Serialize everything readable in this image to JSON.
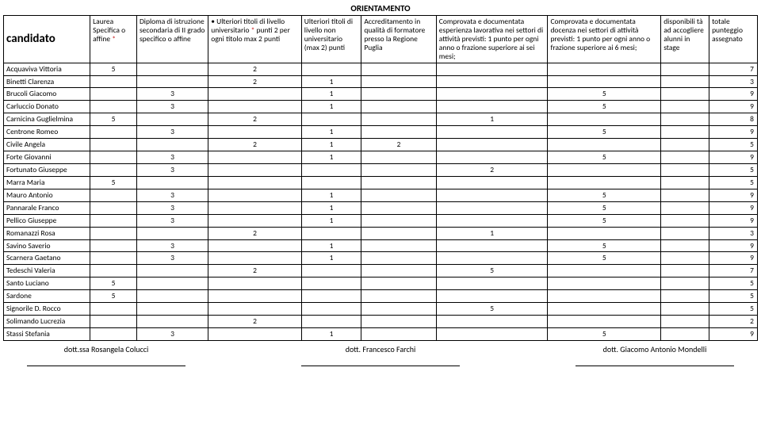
{
  "title": "ORIENTAMENTO",
  "headers": {
    "candidato": "candidato",
    "c1a": "Laurea Specifica o affine",
    "c1b": "*",
    "c2": "Diploma di istruzione secondaria di II grado specifico o affine",
    "c3a": "Ulteriori titoli di livello universitario ",
    "c3b": "*",
    "c3c": " punti 2 per ogni titolo  max 2 punti",
    "c4": "Ulteriori titoli di livello non universitario (max 2) punti",
    "c5": "Accreditamento in qualità di formatore presso la Regione Puglia",
    "c6": "Comprovata e documentata esperienza lavorativa nei settori di attività previsti: 1 punto per ogni anno o frazione superiore ai sei mesi;",
    "c7": "Comprovata e documentata docenza nei settori di attività previsti: 1 punto per ogni anno o frazione superiore ai 6 mesi;",
    "c8": "disponibili tà ad accogliere alunni in stage",
    "c9": "totale punteggio assegnato"
  },
  "rows": [
    {
      "n": "Acquaviva Vittoria",
      "v": [
        "5",
        "",
        "2",
        "",
        "",
        "",
        "",
        "",
        "7"
      ]
    },
    {
      "n": "Binetti Clarenza",
      "v": [
        "",
        "",
        "2",
        "1",
        "",
        "",
        "",
        "",
        "3"
      ]
    },
    {
      "n": "Brucoli Giacomo",
      "v": [
        "",
        "3",
        "",
        "1",
        "",
        "",
        "5",
        "",
        "9"
      ]
    },
    {
      "n": "Carluccio Donato",
      "v": [
        "",
        "3",
        "",
        "1",
        "",
        "",
        "5",
        "",
        "9"
      ]
    },
    {
      "n": "Carnicina Guglielmina",
      "v": [
        "5",
        "",
        "2",
        "",
        "",
        "1",
        "",
        "",
        "8"
      ]
    },
    {
      "n": "Centrone Romeo",
      "v": [
        "",
        "3",
        "",
        "1",
        "",
        "",
        "5",
        "",
        "9"
      ]
    },
    {
      "n": "Civile Angela",
      "v": [
        "",
        "",
        "2",
        "1",
        "2",
        "",
        "",
        "",
        "5"
      ]
    },
    {
      "n": "Forte Giovanni",
      "v": [
        "",
        "3",
        "",
        "1",
        "",
        "",
        "5",
        "",
        "9"
      ]
    },
    {
      "n": "Fortunato Giuseppe",
      "v": [
        "",
        "3",
        "",
        "",
        "",
        "2",
        "",
        "",
        "5"
      ]
    },
    {
      "n": "Marra Maria",
      "v": [
        "5",
        "",
        "",
        "",
        "",
        "",
        "",
        "",
        "5"
      ]
    },
    {
      "n": "Mauro Antonio",
      "v": [
        "",
        "3",
        "",
        "1",
        "",
        "",
        "5",
        "",
        "9"
      ]
    },
    {
      "n": "Pannarale Franco",
      "v": [
        "",
        "3",
        "",
        "1",
        "",
        "",
        "5",
        "",
        "9"
      ]
    },
    {
      "n": "Pellico Giuseppe",
      "v": [
        "",
        "3",
        "",
        "1",
        "",
        "",
        "5",
        "",
        "9"
      ]
    },
    {
      "n": "Romanazzi Rosa",
      "v": [
        "",
        "",
        "2",
        "",
        "",
        "1",
        "",
        "",
        "3"
      ]
    },
    {
      "n": "Savino Saverio",
      "v": [
        "",
        "3",
        "",
        "1",
        "",
        "",
        "5",
        "",
        "9"
      ]
    },
    {
      "n": "Scarnera Gaetano",
      "v": [
        "",
        "3",
        "",
        "1",
        "",
        "",
        "5",
        "",
        "9"
      ]
    },
    {
      "n": "Tedeschi Valeria",
      "v": [
        "",
        "",
        "2",
        "",
        "",
        "5",
        "",
        "",
        "7"
      ]
    },
    {
      "n": "Santo Luciano",
      "v": [
        "5",
        "",
        "",
        "",
        "",
        "",
        "",
        "",
        "5"
      ]
    },
    {
      "n": "Sardone",
      "v": [
        "5",
        "",
        "",
        "",
        "",
        "",
        "",
        "",
        "5"
      ]
    },
    {
      "n": "Signorile D. Rocco",
      "v": [
        "",
        "",
        "",
        "",
        "",
        "5",
        "",
        "",
        "5"
      ]
    },
    {
      "n": "Solimando Lucrezia",
      "v": [
        "",
        "",
        "2",
        "",
        "",
        "",
        "",
        "",
        "2"
      ]
    },
    {
      "n": "Stassi Stefania",
      "v": [
        "",
        "3",
        "",
        "1",
        "",
        "",
        "5",
        "",
        "9"
      ]
    }
  ],
  "footer": {
    "s1": "dott.ssa Rosangela Colucci",
    "s2": "dott. Francesco Farchi",
    "s3": "dott. Giacomo Antonio Mondelli"
  }
}
